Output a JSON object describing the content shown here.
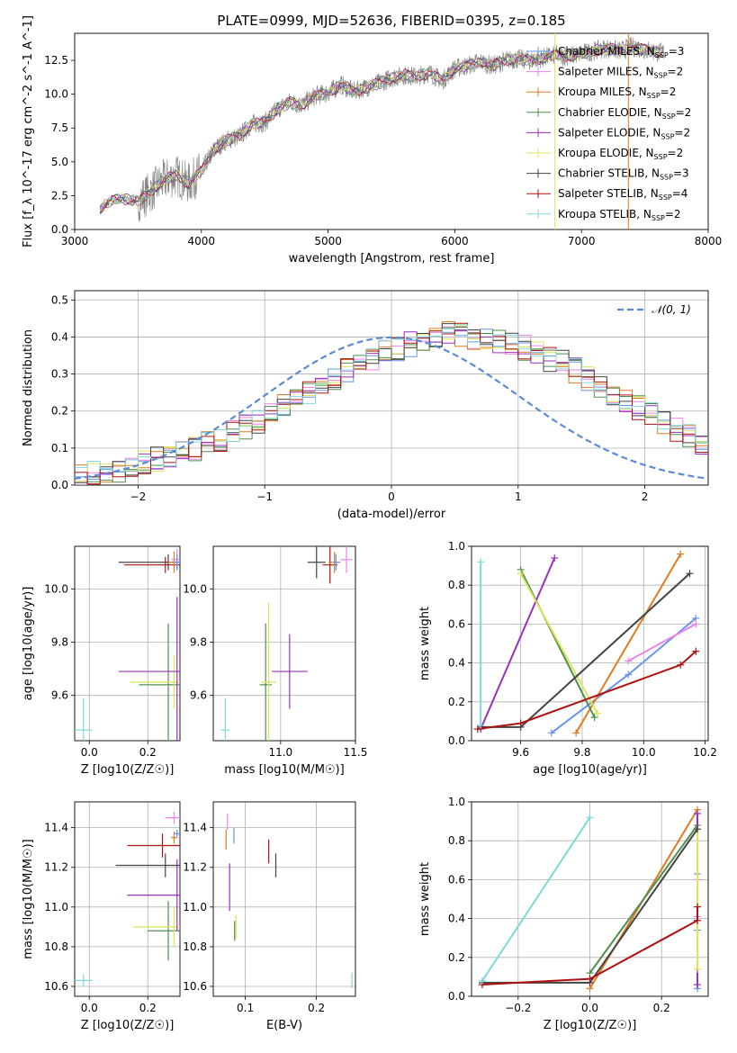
{
  "figure": {
    "title": "PLATE=0999, MJD=52636, FIBERID=0395, z=0.185"
  },
  "palette": {
    "chabrier_miles": "#6495ed",
    "salpeter_miles": "#ee82ee",
    "kroupa_miles": "#e07b20",
    "chabrier_elodie": "#4f8f4f",
    "salpeter_elodie": "#9b30c0",
    "kroupa_elodie": "#dce45a",
    "chabrier_stelib": "#444444",
    "salpeter_stelib": "#b01010",
    "kroupa_stelib": "#7fd8d8",
    "data": "#808080",
    "normal": "#5b8bd5"
  },
  "chart_data": [
    {
      "id": "spectrum",
      "type": "line",
      "xlabel": "wavelength [Angstrom, rest frame]",
      "ylabel": "Flux [f_λ 10^-17 erg cm^-2 s^-1 A^-1]",
      "xlim": [
        3000,
        8000
      ],
      "ylim": [
        0,
        14.5
      ],
      "xticks": [
        3000,
        4000,
        5000,
        6000,
        7000,
        8000
      ],
      "yticks": [
        0.0,
        2.5,
        5.0,
        7.5,
        10.0,
        12.5
      ],
      "grid": false,
      "legend": "top-right",
      "x": [
        3200,
        3300,
        3400,
        3500,
        3600,
        3700,
        3800,
        3900,
        4000,
        4100,
        4200,
        4300,
        4400,
        4500,
        4600,
        4700,
        4800,
        4900,
        5000,
        5100,
        5200,
        5300,
        5400,
        5500,
        5600,
        5700,
        5800,
        5900,
        6000,
        6100,
        6200,
        6300,
        6400,
        6500,
        6600,
        6700,
        6800,
        6900,
        7000,
        7100,
        7200,
        7300,
        7400,
        7500,
        7600
      ],
      "data_flux": [
        1.5,
        2.2,
        2.3,
        2.1,
        2.8,
        3.6,
        4.0,
        3.4,
        4.3,
        5.9,
        6.6,
        6.9,
        7.8,
        7.9,
        8.9,
        9.4,
        9.2,
        9.9,
        10.1,
        10.7,
        10.2,
        10.5,
        10.8,
        11.2,
        11.4,
        11.3,
        11.6,
        11.0,
        11.9,
        12.1,
        12.4,
        12.1,
        12.5,
        12.6,
        12.5,
        12.7,
        12.9,
        12.8,
        13.0,
        13.2,
        13.4,
        13.2,
        13.5,
        13.3,
        13.1
      ],
      "series": [
        {
          "name": "Chabrier MILES, N_SSP=3",
          "key": "chabrier_miles"
        },
        {
          "name": "Salpeter MILES, N_SSP=2",
          "key": "salpeter_miles"
        },
        {
          "name": "Kroupa MILES, N_SSP=2",
          "key": "kroupa_miles"
        },
        {
          "name": "Chabrier ELODIE, N_SSP=2",
          "key": "chabrier_elodie"
        },
        {
          "name": "Salpeter ELODIE, N_SSP=2",
          "key": "salpeter_elodie"
        },
        {
          "name": "Kroupa ELODIE, N_SSP=2",
          "key": "kroupa_elodie"
        },
        {
          "name": "Chabrier STELIB, N_SSP=3",
          "key": "chabrier_stelib"
        },
        {
          "name": "Salpeter STELIB, N_SSP=4",
          "key": "salpeter_stelib"
        },
        {
          "name": "Kroupa STELIB, N_SSP=2",
          "key": "kroupa_stelib"
        }
      ]
    },
    {
      "id": "residuals",
      "type": "histogram",
      "xlabel": "(data-model)/error",
      "ylabel": "Normed distribution",
      "xlim": [
        -2.5,
        2.5
      ],
      "ylim": [
        0,
        0.525
      ],
      "xticks": [
        -2,
        -1,
        0,
        1,
        2
      ],
      "yticks": [
        0.0,
        0.1,
        0.2,
        0.3,
        0.4,
        0.5
      ],
      "grid": true,
      "legend": "top-right",
      "bin_width": 0.1,
      "bin_start": -2.5,
      "envelope": [
        0.02,
        0.03,
        0.035,
        0.04,
        0.05,
        0.06,
        0.07,
        0.075,
        0.085,
        0.095,
        0.11,
        0.12,
        0.14,
        0.155,
        0.17,
        0.19,
        0.21,
        0.23,
        0.25,
        0.27,
        0.29,
        0.31,
        0.33,
        0.34,
        0.36,
        0.37,
        0.38,
        0.39,
        0.4,
        0.41,
        0.41,
        0.4,
        0.4,
        0.39,
        0.38,
        0.37,
        0.36,
        0.34,
        0.33,
        0.31,
        0.29,
        0.27,
        0.25,
        0.23,
        0.21,
        0.19,
        0.17,
        0.15,
        0.13,
        0.115
      ],
      "normal_label": "N(0,1)"
    },
    {
      "id": "age_vs_Z",
      "type": "errorbar",
      "xlabel": "Z [log10(Z/Z☉)]",
      "ylabel": "age [log10(age/yr)]",
      "xlim": [
        -0.05,
        0.31
      ],
      "ylim": [
        9.43,
        10.16
      ],
      "xticks": [
        0.0,
        0.2
      ],
      "yticks": [
        9.6,
        9.8,
        10.0
      ],
      "grid": true,
      "points": [
        {
          "key": "kroupa_stelib",
          "x": -0.02,
          "y": 9.47,
          "xerr": 0.03,
          "yerr": 0.12
        },
        {
          "key": "chabrier_elodie",
          "x": 0.27,
          "y": 9.64,
          "xerr": 0.1,
          "yerr": 0.23
        },
        {
          "key": "kroupa_elodie",
          "x": 0.29,
          "y": 9.65,
          "xerr": 0.15,
          "yerr": 0.1
        },
        {
          "key": "salpeter_elodie",
          "x": 0.3,
          "y": 9.69,
          "xerr": 0.2,
          "yerr": 0.28
        },
        {
          "key": "chabrier_stelib",
          "x": 0.27,
          "y": 10.1,
          "xerr": 0.17,
          "yerr": 0.03
        },
        {
          "key": "salpeter_stelib",
          "x": 0.26,
          "y": 10.09,
          "xerr": 0.14,
          "yerr": 0.03
        },
        {
          "key": "kroupa_miles",
          "x": 0.29,
          "y": 10.1,
          "xerr": 0.02,
          "yerr": 0.04
        },
        {
          "key": "salpeter_miles",
          "x": 0.3,
          "y": 10.11,
          "xerr": 0.02,
          "yerr": 0.04
        },
        {
          "key": "chabrier_miles",
          "x": 0.3,
          "y": 10.1,
          "xerr": 0.01,
          "yerr": 0.03
        }
      ]
    },
    {
      "id": "age_vs_mass",
      "type": "errorbar",
      "xlabel": "mass [log10(M/M☉)]",
      "ylabel": "",
      "xlim": [
        10.55,
        11.5
      ],
      "ylim": [
        9.43,
        10.16
      ],
      "xticks": [
        10.5,
        11.0,
        11.5
      ],
      "yticks": [
        9.6,
        9.8,
        10.0
      ],
      "grid": true,
      "points": [
        {
          "key": "kroupa_stelib",
          "x": 10.63,
          "y": 9.47,
          "xerr": 0.03,
          "yerr": 0.12
        },
        {
          "key": "chabrier_elodie",
          "x": 10.9,
          "y": 9.64,
          "xerr": 0.04,
          "yerr": 0.23
        },
        {
          "key": "kroupa_elodie",
          "x": 10.92,
          "y": 9.65,
          "xerr": 0.05,
          "yerr": 0.3
        },
        {
          "key": "salpeter_elodie",
          "x": 11.06,
          "y": 9.69,
          "xerr": 0.12,
          "yerr": 0.14
        },
        {
          "key": "chabrier_stelib",
          "x": 11.24,
          "y": 10.1,
          "xerr": 0.06,
          "yerr": 0.06
        },
        {
          "key": "salpeter_stelib",
          "x": 11.33,
          "y": 10.09,
          "xerr": 0.05,
          "yerr": 0.07
        },
        {
          "key": "kroupa_miles",
          "x": 11.36,
          "y": 10.1,
          "xerr": 0.04,
          "yerr": 0.04
        },
        {
          "key": "salpeter_miles",
          "x": 11.44,
          "y": 10.11,
          "xerr": 0.04,
          "yerr": 0.05
        },
        {
          "key": "chabrier_miles",
          "x": 11.37,
          "y": 10.1,
          "xerr": 0.02,
          "yerr": 0.03
        }
      ]
    },
    {
      "id": "weight_vs_age",
      "type": "line",
      "xlabel": "age [log10(age/yr)]",
      "ylabel": "mass weight",
      "xlim": [
        9.44,
        10.21
      ],
      "ylim": [
        0,
        1.0
      ],
      "xticks": [
        9.6,
        9.8,
        10.0,
        10.2
      ],
      "yticks": [
        0.0,
        0.2,
        0.4,
        0.6,
        0.8,
        1.0
      ],
      "grid": true,
      "series": [
        {
          "key": "chabrier_miles",
          "points": [
            [
              9.7,
              0.04
            ],
            [
              9.95,
              0.34
            ],
            [
              10.17,
              0.63
            ]
          ]
        },
        {
          "key": "salpeter_miles",
          "points": [
            [
              9.95,
              0.41
            ],
            [
              10.17,
              0.6
            ]
          ]
        },
        {
          "key": "kroupa_miles",
          "points": [
            [
              9.78,
              0.04
            ],
            [
              10.12,
              0.96
            ]
          ]
        },
        {
          "key": "chabrier_elodie",
          "points": [
            [
              9.6,
              0.88
            ],
            [
              9.84,
              0.12
            ]
          ]
        },
        {
          "key": "salpeter_elodie",
          "points": [
            [
              9.47,
              0.06
            ],
            [
              9.71,
              0.94
            ]
          ]
        },
        {
          "key": "kroupa_elodie",
          "points": [
            [
              9.6,
              0.86
            ],
            [
              9.85,
              0.14
            ]
          ]
        },
        {
          "key": "chabrier_stelib",
          "points": [
            [
              9.47,
              0.07
            ],
            [
              9.6,
              0.07
            ],
            [
              10.15,
              0.86
            ]
          ]
        },
        {
          "key": "salpeter_stelib",
          "points": [
            [
              9.46,
              0.06
            ],
            [
              9.6,
              0.09
            ],
            [
              10.12,
              0.39
            ],
            [
              10.17,
              0.46
            ]
          ]
        },
        {
          "key": "kroupa_stelib",
          "points": [
            [
              9.47,
              0.08
            ],
            [
              9.47,
              0.92
            ]
          ]
        }
      ]
    },
    {
      "id": "mass_vs_Z",
      "type": "errorbar",
      "xlabel": "Z [log10(Z/Z☉)]",
      "ylabel": "mass [log10(M/M☉)]",
      "xlim": [
        -0.05,
        0.31
      ],
      "ylim": [
        10.55,
        11.53
      ],
      "xticks": [
        0.0,
        0.2
      ],
      "yticks": [
        10.6,
        10.8,
        11.0,
        11.2,
        11.4
      ],
      "grid": true,
      "points": [
        {
          "key": "kroupa_stelib",
          "x": -0.02,
          "y": 10.63,
          "xerr": 0.03,
          "yerr": 0.03
        },
        {
          "key": "chabrier_elodie",
          "x": 0.27,
          "y": 10.88,
          "xerr": 0.07,
          "yerr": 0.15
        },
        {
          "key": "kroupa_elodie",
          "x": 0.29,
          "y": 10.9,
          "xerr": 0.14,
          "yerr": 0.1
        },
        {
          "key": "salpeter_elodie",
          "x": 0.3,
          "y": 11.06,
          "xerr": 0.17,
          "yerr": 0.18
        },
        {
          "key": "chabrier_stelib",
          "x": 0.26,
          "y": 11.21,
          "xerr": 0.17,
          "yerr": 0.06
        },
        {
          "key": "salpeter_stelib",
          "x": 0.25,
          "y": 11.31,
          "xerr": 0.12,
          "yerr": 0.06
        },
        {
          "key": "kroupa_miles",
          "x": 0.29,
          "y": 11.35,
          "xerr": 0.01,
          "yerr": 0.03
        },
        {
          "key": "salpeter_miles",
          "x": 0.29,
          "y": 11.45,
          "xerr": 0.03,
          "yerr": 0.03
        },
        {
          "key": "chabrier_miles",
          "x": 0.3,
          "y": 11.37,
          "xerr": 0.01,
          "yerr": 0.02
        }
      ]
    },
    {
      "id": "mass_vs_ebv",
      "type": "errorbar",
      "xlabel": "E(B-V)",
      "ylabel": "",
      "xlim": [
        0.055,
        0.255
      ],
      "ylim": [
        10.55,
        11.53
      ],
      "xticks": [
        0.1,
        0.2
      ],
      "yticks": [
        10.6,
        10.8,
        11.0,
        11.2,
        11.4
      ],
      "grid": true,
      "points": [
        {
          "key": "kroupa_stelib",
          "x": 0.25,
          "y": 10.63,
          "xerr": 0.0,
          "yerr": 0.04
        },
        {
          "key": "chabrier_elodie",
          "x": 0.085,
          "y": 10.88,
          "xerr": 0.0,
          "yerr": 0.05
        },
        {
          "key": "kroupa_elodie",
          "x": 0.087,
          "y": 10.9,
          "xerr": 0.0,
          "yerr": 0.06
        },
        {
          "key": "salpeter_elodie",
          "x": 0.078,
          "y": 11.1,
          "xerr": 0.0,
          "yerr": 0.12
        },
        {
          "key": "chabrier_stelib",
          "x": 0.143,
          "y": 11.21,
          "xerr": 0.0,
          "yerr": 0.06
        },
        {
          "key": "salpeter_stelib",
          "x": 0.133,
          "y": 11.28,
          "xerr": 0.0,
          "yerr": 0.06
        },
        {
          "key": "kroupa_miles",
          "x": 0.073,
          "y": 11.34,
          "xerr": 0.0,
          "yerr": 0.05
        },
        {
          "key": "salpeter_miles",
          "x": 0.075,
          "y": 11.43,
          "xerr": 0.0,
          "yerr": 0.04
        },
        {
          "key": "chabrier_miles",
          "x": 0.084,
          "y": 11.36,
          "xerr": 0.0,
          "yerr": 0.04
        }
      ]
    },
    {
      "id": "weight_vs_Z",
      "type": "line",
      "xlabel": "Z [log10(Z/Z☉)]",
      "ylabel": "mass weight",
      "xlim": [
        -0.33,
        0.33
      ],
      "ylim": [
        0,
        1.0
      ],
      "xticks": [
        -0.2,
        0.0,
        0.2
      ],
      "yticks": [
        0.0,
        0.2,
        0.4,
        0.6,
        0.8,
        1.0
      ],
      "grid": true,
      "series": [
        {
          "key": "chabrier_miles",
          "points": [
            [
              0.3,
              0.04
            ],
            [
              0.3,
              0.34
            ],
            [
              0.3,
              0.63
            ]
          ]
        },
        {
          "key": "salpeter_miles",
          "points": [
            [
              0.3,
              0.41
            ],
            [
              0.3,
              0.6
            ]
          ]
        },
        {
          "key": "kroupa_miles",
          "points": [
            [
              0.0,
              0.04
            ],
            [
              0.3,
              0.96
            ]
          ]
        },
        {
          "key": "chabrier_elodie",
          "points": [
            [
              0.0,
              0.12
            ],
            [
              0.3,
              0.88
            ]
          ]
        },
        {
          "key": "salpeter_elodie",
          "points": [
            [
              0.3,
              0.06
            ],
            [
              0.3,
              0.94
            ]
          ]
        },
        {
          "key": "kroupa_elodie",
          "points": [
            [
              0.3,
              0.14
            ],
            [
              0.3,
              0.86
            ]
          ]
        },
        {
          "key": "chabrier_stelib",
          "points": [
            [
              -0.3,
              0.07
            ],
            [
              0.0,
              0.07
            ],
            [
              0.3,
              0.86
            ]
          ]
        },
        {
          "key": "salpeter_stelib",
          "points": [
            [
              -0.3,
              0.06
            ],
            [
              0.0,
              0.09
            ],
            [
              0.3,
              0.39
            ],
            [
              0.3,
              0.46
            ]
          ]
        },
        {
          "key": "kroupa_stelib",
          "points": [
            [
              -0.3,
              0.08
            ],
            [
              0.0,
              0.92
            ]
          ]
        }
      ]
    }
  ]
}
